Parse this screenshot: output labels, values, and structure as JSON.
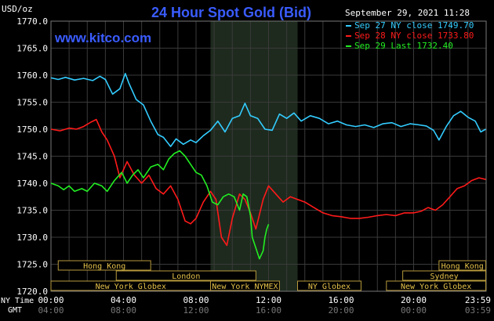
{
  "chart_data": {
    "type": "line",
    "title": "24 Hour Spot Gold (Bid)",
    "watermark": "www.kitco.com",
    "timestamp": "September 29, 2021 11:28",
    "y_unit_label": "USD/oz",
    "ylim": [
      1720,
      1770
    ],
    "ytick_labels": [
      "1770.0",
      "1765.0",
      "1760.0",
      "1755.0",
      "1750.0",
      "1745.0",
      "1740.0",
      "1735.0",
      "1730.0",
      "1725.0",
      "1720.0"
    ],
    "ytick_values": [
      1770,
      1765,
      1760,
      1755,
      1750,
      1745,
      1740,
      1735,
      1730,
      1725,
      1720
    ],
    "xlim_hours": [
      0,
      24
    ],
    "x_axis": {
      "ny_time_label": "NY Time",
      "gmt_label": "GMT",
      "ny_ticks": [
        "00:00",
        "04:00",
        "08:00",
        "12:00",
        "16:00",
        "20:00",
        "23:59"
      ],
      "gmt_ticks": [
        "04:00",
        "08:00",
        "12:00",
        "16:00",
        "20:00",
        "00:00",
        "03:59"
      ],
      "tick_hours": [
        0,
        4,
        8,
        12,
        16,
        20,
        23.983
      ]
    },
    "highlight_band_hours": [
      8.8,
      13.6
    ],
    "legend": [
      {
        "label": "Sep 27 NY close 1749.70",
        "color": "#33ccff"
      },
      {
        "label": "Sep 28 NY close 1733.80",
        "color": "#ff1a1a"
      },
      {
        "label": "Sep 29 Last 1732.40",
        "color": "#22ee22"
      }
    ],
    "series": [
      {
        "color": "#33ccff",
        "points": [
          [
            0,
            1759.5
          ],
          [
            0.4,
            1759.2
          ],
          [
            0.8,
            1759.6
          ],
          [
            1.3,
            1759.1
          ],
          [
            1.8,
            1759.4
          ],
          [
            2.3,
            1759.0
          ],
          [
            2.7,
            1759.8
          ],
          [
            3.0,
            1759.2
          ],
          [
            3.4,
            1756.5
          ],
          [
            3.8,
            1757.5
          ],
          [
            4.1,
            1760.3
          ],
          [
            4.3,
            1758.5
          ],
          [
            4.7,
            1755.5
          ],
          [
            5.1,
            1754.5
          ],
          [
            5.5,
            1751.5
          ],
          [
            5.9,
            1749.0
          ],
          [
            6.2,
            1748.5
          ],
          [
            6.6,
            1746.8
          ],
          [
            6.9,
            1748.2
          ],
          [
            7.3,
            1747.2
          ],
          [
            7.7,
            1748.0
          ],
          [
            8.0,
            1747.5
          ],
          [
            8.4,
            1748.8
          ],
          [
            8.8,
            1749.8
          ],
          [
            9.2,
            1751.5
          ],
          [
            9.6,
            1749.5
          ],
          [
            10.0,
            1752.0
          ],
          [
            10.4,
            1752.5
          ],
          [
            10.7,
            1754.8
          ],
          [
            11.0,
            1752.5
          ],
          [
            11.4,
            1752.0
          ],
          [
            11.8,
            1750.0
          ],
          [
            12.2,
            1749.8
          ],
          [
            12.6,
            1752.8
          ],
          [
            13.0,
            1752.0
          ],
          [
            13.4,
            1753.0
          ],
          [
            13.8,
            1751.5
          ],
          [
            14.3,
            1752.5
          ],
          [
            14.8,
            1752.0
          ],
          [
            15.3,
            1751.0
          ],
          [
            15.8,
            1751.5
          ],
          [
            16.3,
            1750.8
          ],
          [
            16.8,
            1750.5
          ],
          [
            17.3,
            1750.8
          ],
          [
            17.8,
            1750.3
          ],
          [
            18.3,
            1751.0
          ],
          [
            18.8,
            1751.2
          ],
          [
            19.3,
            1750.5
          ],
          [
            19.8,
            1751.0
          ],
          [
            20.3,
            1750.8
          ],
          [
            20.7,
            1750.6
          ],
          [
            21.1,
            1749.8
          ],
          [
            21.4,
            1748.0
          ],
          [
            21.8,
            1750.5
          ],
          [
            22.2,
            1752.5
          ],
          [
            22.6,
            1753.3
          ],
          [
            23.0,
            1752.2
          ],
          [
            23.4,
            1751.5
          ],
          [
            23.7,
            1749.5
          ],
          [
            23.98,
            1750.0
          ]
        ]
      },
      {
        "color": "#ff1a1a",
        "points": [
          [
            0,
            1750.0
          ],
          [
            0.5,
            1749.7
          ],
          [
            1.0,
            1750.2
          ],
          [
            1.4,
            1750.0
          ],
          [
            1.8,
            1750.5
          ],
          [
            2.2,
            1751.3
          ],
          [
            2.5,
            1751.8
          ],
          [
            2.8,
            1749.5
          ],
          [
            3.1,
            1748.0
          ],
          [
            3.5,
            1745.0
          ],
          [
            3.8,
            1741.0
          ],
          [
            4.2,
            1744.0
          ],
          [
            4.6,
            1741.5
          ],
          [
            5.0,
            1740.0
          ],
          [
            5.4,
            1741.5
          ],
          [
            5.8,
            1739.0
          ],
          [
            6.2,
            1738.0
          ],
          [
            6.6,
            1739.5
          ],
          [
            7.0,
            1737.0
          ],
          [
            7.4,
            1733.0
          ],
          [
            7.7,
            1732.5
          ],
          [
            8.0,
            1733.5
          ],
          [
            8.4,
            1736.5
          ],
          [
            8.8,
            1738.5
          ],
          [
            9.1,
            1737.0
          ],
          [
            9.4,
            1730.0
          ],
          [
            9.7,
            1728.5
          ],
          [
            10.0,
            1733.5
          ],
          [
            10.4,
            1738.0
          ],
          [
            10.7,
            1737.0
          ],
          [
            11.0,
            1734.5
          ],
          [
            11.3,
            1731.5
          ],
          [
            11.7,
            1737.0
          ],
          [
            12.0,
            1739.5
          ],
          [
            12.4,
            1738.0
          ],
          [
            12.8,
            1736.5
          ],
          [
            13.2,
            1737.5
          ],
          [
            13.6,
            1737.0
          ],
          [
            14.0,
            1736.5
          ],
          [
            14.5,
            1735.5
          ],
          [
            15.0,
            1734.5
          ],
          [
            15.5,
            1734.0
          ],
          [
            16.0,
            1733.8
          ],
          [
            16.5,
            1733.5
          ],
          [
            17.0,
            1733.5
          ],
          [
            17.5,
            1733.7
          ],
          [
            18.0,
            1734.0
          ],
          [
            18.5,
            1734.2
          ],
          [
            19.0,
            1734.0
          ],
          [
            19.5,
            1734.5
          ],
          [
            20.0,
            1734.5
          ],
          [
            20.4,
            1734.8
          ],
          [
            20.8,
            1735.5
          ],
          [
            21.2,
            1735.0
          ],
          [
            21.6,
            1736.0
          ],
          [
            22.0,
            1737.5
          ],
          [
            22.4,
            1739.0
          ],
          [
            22.8,
            1739.5
          ],
          [
            23.2,
            1740.5
          ],
          [
            23.6,
            1741.0
          ],
          [
            23.98,
            1740.7
          ]
        ]
      },
      {
        "color": "#22ee22",
        "points": [
          [
            0,
            1740.0
          ],
          [
            0.4,
            1739.5
          ],
          [
            0.7,
            1738.8
          ],
          [
            1.0,
            1739.5
          ],
          [
            1.3,
            1738.5
          ],
          [
            1.7,
            1739.0
          ],
          [
            2.0,
            1738.5
          ],
          [
            2.4,
            1740.0
          ],
          [
            2.8,
            1739.5
          ],
          [
            3.1,
            1738.5
          ],
          [
            3.5,
            1740.5
          ],
          [
            3.9,
            1742.0
          ],
          [
            4.2,
            1740.0
          ],
          [
            4.5,
            1741.5
          ],
          [
            4.8,
            1742.5
          ],
          [
            5.1,
            1741.0
          ],
          [
            5.5,
            1743.0
          ],
          [
            5.9,
            1743.5
          ],
          [
            6.2,
            1742.5
          ],
          [
            6.5,
            1744.5
          ],
          [
            6.8,
            1745.5
          ],
          [
            7.1,
            1746.0
          ],
          [
            7.4,
            1745.0
          ],
          [
            7.7,
            1743.5
          ],
          [
            8.0,
            1742.0
          ],
          [
            8.3,
            1741.5
          ],
          [
            8.6,
            1739.5
          ],
          [
            8.9,
            1736.5
          ],
          [
            9.2,
            1736.0
          ],
          [
            9.5,
            1737.5
          ],
          [
            9.8,
            1738.0
          ],
          [
            10.1,
            1737.5
          ],
          [
            10.4,
            1735.0
          ],
          [
            10.6,
            1738.0
          ],
          [
            10.8,
            1737.5
          ],
          [
            11.0,
            1734.0
          ],
          [
            11.1,
            1730.0
          ],
          [
            11.3,
            1728.0
          ],
          [
            11.5,
            1726.0
          ],
          [
            11.7,
            1727.5
          ],
          [
            11.8,
            1730.0
          ],
          [
            11.9,
            1731.5
          ],
          [
            12.0,
            1732.4
          ]
        ]
      }
    ],
    "sessions": {
      "row1": [
        {
          "label": "Hong Kong",
          "start": 0.4,
          "end": 5.5
        },
        {
          "label": "Hong Kong",
          "start": 21.4,
          "end": 23.98
        }
      ],
      "row2": [
        {
          "label": "London",
          "start": 3.6,
          "end": 11.3
        },
        {
          "label": "Sydney",
          "start": 19.4,
          "end": 23.98
        }
      ],
      "row3": [
        {
          "label": "New York Globex",
          "start": 0.0,
          "end": 8.8
        },
        {
          "label": "New York NYMEX",
          "start": 8.8,
          "end": 12.6
        },
        {
          "label": "NY Globex",
          "start": 13.6,
          "end": 17.1
        },
        {
          "label": "New York Globex",
          "start": 18.5,
          "end": 23.98
        }
      ]
    }
  }
}
